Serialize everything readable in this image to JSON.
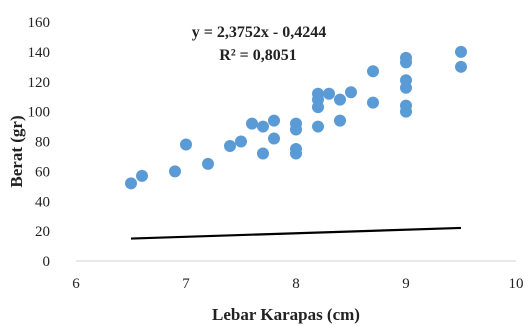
{
  "chart_data": {
    "type": "scatter",
    "xlabel": "Lebar Karapas (cm)",
    "ylabel": "Berat (gr)",
    "xlim": [
      6,
      10
    ],
    "ylim": [
      0,
      160
    ],
    "x_ticks": [
      6,
      7,
      8,
      9,
      10
    ],
    "y_ticks": [
      0,
      20,
      40,
      60,
      80,
      100,
      120,
      140,
      160
    ],
    "x_tick_labels": [
      "6",
      "7",
      "8",
      "9",
      "10"
    ],
    "y_tick_labels": [
      "0",
      "20",
      "40",
      "60",
      "80",
      "100",
      "120",
      "140",
      "160"
    ],
    "grid": false,
    "point_color": "#5B9BD5",
    "trendline_color": "#000000",
    "trendline": {
      "slope": 2.3752,
      "intercept": -0.4244,
      "x_range": [
        6.5,
        9.5
      ],
      "equation_label": "y = 2,3752x - 0,4244",
      "r2_label": "R² = 0,8051"
    },
    "points": [
      {
        "x": 6.5,
        "y": 52
      },
      {
        "x": 6.6,
        "y": 57
      },
      {
        "x": 6.9,
        "y": 60
      },
      {
        "x": 7.0,
        "y": 78
      },
      {
        "x": 7.2,
        "y": 65
      },
      {
        "x": 7.4,
        "y": 77
      },
      {
        "x": 7.5,
        "y": 80
      },
      {
        "x": 7.6,
        "y": 92
      },
      {
        "x": 7.7,
        "y": 90
      },
      {
        "x": 7.7,
        "y": 72
      },
      {
        "x": 7.8,
        "y": 94
      },
      {
        "x": 7.8,
        "y": 82
      },
      {
        "x": 8.0,
        "y": 92
      },
      {
        "x": 8.0,
        "y": 88
      },
      {
        "x": 8.0,
        "y": 75
      },
      {
        "x": 8.0,
        "y": 72
      },
      {
        "x": 8.2,
        "y": 112
      },
      {
        "x": 8.2,
        "y": 108
      },
      {
        "x": 8.2,
        "y": 103
      },
      {
        "x": 8.2,
        "y": 90
      },
      {
        "x": 8.3,
        "y": 112
      },
      {
        "x": 8.4,
        "y": 108
      },
      {
        "x": 8.4,
        "y": 94
      },
      {
        "x": 8.5,
        "y": 113
      },
      {
        "x": 8.7,
        "y": 127
      },
      {
        "x": 8.7,
        "y": 106
      },
      {
        "x": 9.0,
        "y": 136
      },
      {
        "x": 9.0,
        "y": 133
      },
      {
        "x": 9.0,
        "y": 121
      },
      {
        "x": 9.0,
        "y": 116
      },
      {
        "x": 9.0,
        "y": 104
      },
      {
        "x": 9.0,
        "y": 100
      },
      {
        "x": 9.5,
        "y": 140
      },
      {
        "x": 9.5,
        "y": 130
      }
    ]
  }
}
